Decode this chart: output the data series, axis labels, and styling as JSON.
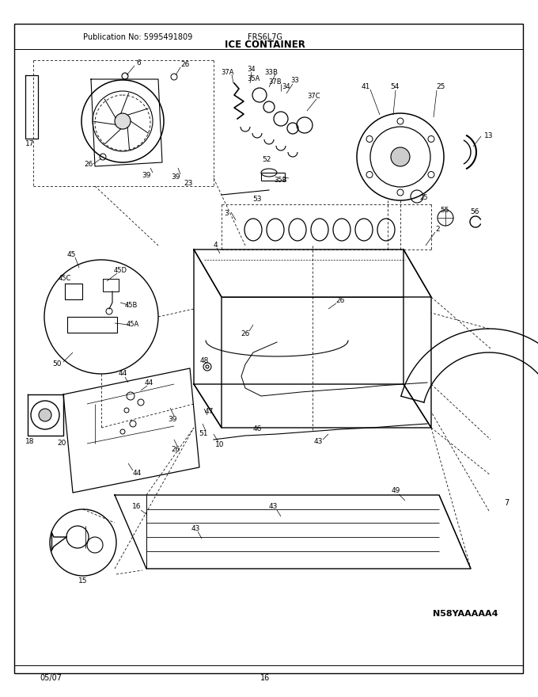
{
  "title": "ICE CONTAINER",
  "pub_no": "Publication No: 5995491809",
  "model": "FRS6L7G",
  "doc_id": "N58YAAAAA4",
  "date": "05/07",
  "page": "16",
  "bg_color": "#ffffff",
  "fig_width": 6.8,
  "fig_height": 8.8,
  "dpi": 100
}
